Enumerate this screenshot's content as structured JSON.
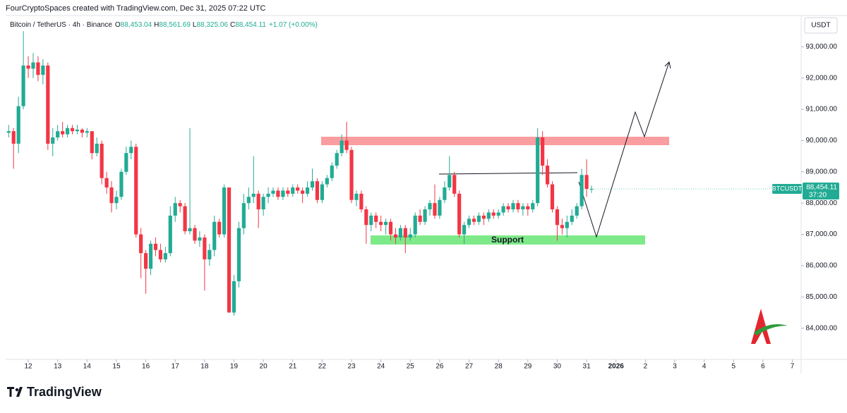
{
  "header": {
    "credit": "FourCryptoSpaces created with TradingView.com, Dec 31, 2025 07:22 UTC",
    "currency": "USDT",
    "logo": "TradingView"
  },
  "legend": {
    "symbol": "Bitcoin / TetherUS · 4h · Binance",
    "items": [
      {
        "key": "O",
        "value": "88,453.04"
      },
      {
        "key": "H",
        "value": "88,561.69"
      },
      {
        "key": "L",
        "value": "88,325.06"
      },
      {
        "key": "C",
        "value": "88,454.11"
      }
    ],
    "change": "+1.07 (+0.00%)"
  },
  "chart_data": {
    "type": "candlestick",
    "up_color": "#22ab94",
    "down_color": "#f23645",
    "grid": false,
    "annotations": {
      "support": "Support"
    },
    "last_label": {
      "symbol": "BTCUSDT",
      "price": "88,454.11",
      "countdown": "37:20"
    },
    "xlim": [
      11.23,
      38.3
    ],
    "xticks": [
      12,
      13,
      14,
      15,
      16,
      17,
      18,
      19,
      20,
      21,
      22,
      23,
      24,
      25,
      26,
      27,
      28,
      29,
      30,
      31,
      {
        "value": 32,
        "label": "2026"
      },
      {
        "value": 33,
        "label": "2"
      },
      {
        "value": 34,
        "label": "3"
      },
      {
        "value": 35,
        "label": "4"
      },
      {
        "value": 36,
        "label": "5"
      },
      {
        "value": 37,
        "label": "6"
      },
      {
        "value": 38,
        "label": "7"
      }
    ],
    "ylim": [
      83000,
      94000
    ],
    "yticks": [
      {
        "value": 84000,
        "label": "84,000.00"
      },
      {
        "value": 85000,
        "label": "85,000.00"
      },
      {
        "value": 86000,
        "label": "86,000.00"
      },
      {
        "value": 87000,
        "label": "87,000.00"
      },
      {
        "value": 88000,
        "label": "88,000.00"
      },
      {
        "value": 89000,
        "label": "89,000.00"
      },
      {
        "value": 90000,
        "label": "90,000.00"
      },
      {
        "value": 91000,
        "label": "91,000.00"
      },
      {
        "value": 92000,
        "label": "92,000.00"
      },
      {
        "value": 93000,
        "label": "93,000.00"
      }
    ],
    "x": [
      11.333,
      11.5,
      11.667,
      11.833,
      12,
      12.167,
      12.333,
      12.5,
      12.667,
      12.833,
      13,
      13.167,
      13.333,
      13.5,
      13.667,
      13.833,
      14,
      14.167,
      14.333,
      14.5,
      14.667,
      14.833,
      15,
      15.167,
      15.333,
      15.5,
      15.667,
      15.833,
      16,
      16.167,
      16.333,
      16.5,
      16.667,
      16.833,
      17,
      17.167,
      17.333,
      17.5,
      17.667,
      17.833,
      18,
      18.167,
      18.333,
      18.5,
      18.667,
      18.833,
      19,
      19.167,
      19.333,
      19.5,
      19.667,
      19.833,
      20,
      20.167,
      20.333,
      20.5,
      20.667,
      20.833,
      21,
      21.167,
      21.333,
      21.5,
      21.667,
      21.833,
      22,
      22.167,
      22.333,
      22.5,
      22.667,
      22.833,
      23,
      23.167,
      23.333,
      23.5,
      23.667,
      23.833,
      24,
      24.167,
      24.333,
      24.5,
      24.667,
      24.833,
      25,
      25.167,
      25.333,
      25.5,
      25.667,
      25.833,
      26,
      26.167,
      26.333,
      26.5,
      26.667,
      26.833,
      27,
      27.167,
      27.333,
      27.5,
      27.667,
      27.833,
      28,
      28.167,
      28.333,
      28.5,
      28.667,
      28.833,
      29,
      29.167,
      29.333,
      29.5,
      29.667,
      29.833,
      30,
      30.167,
      30.333,
      30.5,
      30.667,
      30.833,
      31,
      31.167
    ],
    "ohlc": [
      [
        90250,
        90500,
        90100,
        90300
      ],
      [
        90300,
        90400,
        89100,
        89900
      ],
      [
        89900,
        91400,
        89600,
        91100
      ],
      [
        91100,
        93500,
        91000,
        92400
      ],
      [
        92400,
        92700,
        92000,
        92300
      ],
      [
        92300,
        92800,
        92000,
        92500
      ],
      [
        92500,
        92700,
        91900,
        92100
      ],
      [
        92100,
        92600,
        91800,
        92400
      ],
      [
        92400,
        92500,
        89700,
        89900
      ],
      [
        89900,
        90400,
        89500,
        90100
      ],
      [
        90100,
        90500,
        90000,
        90300
      ],
      [
        90300,
        90600,
        90100,
        90200
      ],
      [
        90200,
        90500,
        90100,
        90400
      ],
      [
        90400,
        90500,
        90200,
        90300
      ],
      [
        90300,
        90500,
        90200,
        90350
      ],
      [
        90350,
        90400,
        90100,
        90250
      ],
      [
        90250,
        90400,
        90100,
        90300
      ],
      [
        90300,
        90300,
        89400,
        89600
      ],
      [
        89600,
        90100,
        89500,
        89900
      ],
      [
        89900,
        90000,
        88600,
        88800
      ],
      [
        88800,
        89000,
        88300,
        88500
      ],
      [
        88500,
        88700,
        87700,
        88000
      ],
      [
        88000,
        88400,
        87800,
        88200
      ],
      [
        88200,
        89100,
        88100,
        89000
      ],
      [
        89000,
        89800,
        88900,
        89600
      ],
      [
        89600,
        90000,
        89400,
        89800
      ],
      [
        89800,
        89900,
        86900,
        87000
      ],
      [
        87000,
        87200,
        85600,
        86400
      ],
      [
        86400,
        86500,
        85100,
        85900
      ],
      [
        85900,
        86800,
        85700,
        86700
      ],
      [
        86700,
        86900,
        86300,
        86500
      ],
      [
        86500,
        86700,
        86100,
        86200
      ],
      [
        86200,
        86600,
        86100,
        86400
      ],
      [
        86400,
        87900,
        86300,
        87600
      ],
      [
        87600,
        88200,
        87400,
        88000
      ],
      [
        88000,
        88100,
        87700,
        87900
      ],
      [
        87900,
        88000,
        87000,
        87100
      ],
      [
        87100,
        90400,
        87000,
        87200
      ],
      [
        87200,
        87300,
        86700,
        86800
      ],
      [
        86800,
        87100,
        86600,
        86900
      ],
      [
        86900,
        87000,
        85200,
        86200
      ],
      [
        86200,
        86700,
        86000,
        86500
      ],
      [
        86500,
        87600,
        86300,
        87400
      ],
      [
        87400,
        87500,
        86900,
        87000
      ],
      [
        87000,
        88600,
        86900,
        88500
      ],
      [
        88500,
        88500,
        84500,
        84500
      ],
      [
        84500,
        85700,
        84400,
        85500
      ],
      [
        85500,
        87400,
        85300,
        87200
      ],
      [
        87200,
        88300,
        87000,
        88000
      ],
      [
        88000,
        88500,
        87800,
        88200
      ],
      [
        88200,
        89500,
        88000,
        88300
      ],
      [
        88300,
        88400,
        87200,
        87800
      ],
      [
        87800,
        88300,
        87600,
        88200
      ],
      [
        88200,
        88500,
        88000,
        88300
      ],
      [
        88300,
        88500,
        88200,
        88400
      ],
      [
        88400,
        88500,
        88100,
        88200
      ],
      [
        88200,
        88500,
        88100,
        88400
      ],
      [
        88400,
        88500,
        88200,
        88300
      ],
      [
        88300,
        88600,
        88200,
        88500
      ],
      [
        88500,
        88600,
        88300,
        88400
      ],
      [
        88400,
        88500,
        88000,
        88300
      ],
      [
        88300,
        88700,
        88200,
        88500
      ],
      [
        88500,
        89100,
        88400,
        88700
      ],
      [
        88700,
        88800,
        88000,
        88100
      ],
      [
        88100,
        88700,
        88000,
        88600
      ],
      [
        88600,
        88900,
        88500,
        88800
      ],
      [
        88800,
        89300,
        88700,
        89200
      ],
      [
        89200,
        89700,
        89100,
        89600
      ],
      [
        89600,
        90200,
        89500,
        90000
      ],
      [
        90000,
        90600,
        89600,
        89700
      ],
      [
        89700,
        89800,
        88000,
        88100
      ],
      [
        88100,
        88400,
        87900,
        88300
      ],
      [
        88300,
        88400,
        87700,
        87800
      ],
      [
        87800,
        87900,
        86700,
        87300
      ],
      [
        87300,
        87700,
        87100,
        87600
      ],
      [
        87600,
        87700,
        87200,
        87400
      ],
      [
        87400,
        87600,
        87100,
        87300
      ],
      [
        87300,
        87500,
        87000,
        87400
      ],
      [
        87400,
        87500,
        86800,
        87000
      ],
      [
        87000,
        87200,
        86700,
        86900
      ],
      [
        86900,
        87300,
        86800,
        87200
      ],
      [
        87200,
        87300,
        86400,
        86900
      ],
      [
        86900,
        87200,
        86800,
        87000
      ],
      [
        87000,
        87700,
        86900,
        87600
      ],
      [
        87600,
        87800,
        87300,
        87400
      ],
      [
        87400,
        87900,
        87300,
        87800
      ],
      [
        87800,
        88100,
        87600,
        88000
      ],
      [
        88000,
        88600,
        87500,
        87600
      ],
      [
        87600,
        88200,
        87500,
        88100
      ],
      [
        88100,
        88700,
        88000,
        88500
      ],
      [
        88500,
        89500,
        88400,
        88900
      ],
      [
        88900,
        89000,
        88200,
        88300
      ],
      [
        88300,
        88400,
        86900,
        87000
      ],
      [
        87000,
        87400,
        86700,
        87300
      ],
      [
        87300,
        87600,
        87200,
        87500
      ],
      [
        87500,
        87600,
        87300,
        87400
      ],
      [
        87400,
        87700,
        87300,
        87600
      ],
      [
        87600,
        87700,
        87300,
        87500
      ],
      [
        87500,
        87800,
        87400,
        87700
      ],
      [
        87700,
        87800,
        87500,
        87600
      ],
      [
        87600,
        87800,
        87500,
        87700
      ],
      [
        87700,
        88000,
        87600,
        87900
      ],
      [
        87900,
        88000,
        87700,
        87800
      ],
      [
        87800,
        88100,
        87700,
        88000
      ],
      [
        88000,
        88100,
        87700,
        87800
      ],
      [
        87800,
        88000,
        87600,
        87900
      ],
      [
        87900,
        88000,
        87600,
        87800
      ],
      [
        87800,
        88100,
        87700,
        88000
      ],
      [
        88000,
        90400,
        87900,
        90100
      ],
      [
        90100,
        90300,
        88900,
        89200
      ],
      [
        89200,
        89400,
        88500,
        88600
      ],
      [
        88600,
        88700,
        87700,
        87800
      ],
      [
        87800,
        87900,
        86800,
        87300
      ],
      [
        87300,
        87500,
        87000,
        87200
      ],
      [
        87200,
        87600,
        86900,
        87400
      ],
      [
        87400,
        87800,
        87300,
        87600
      ],
      [
        87600,
        88000,
        87500,
        87900
      ],
      [
        87900,
        89100,
        87800,
        88900
      ],
      [
        88900,
        89400,
        88200,
        88453.04
      ],
      [
        88453.04,
        88561.69,
        88325.06,
        88454.11
      ]
    ]
  }
}
